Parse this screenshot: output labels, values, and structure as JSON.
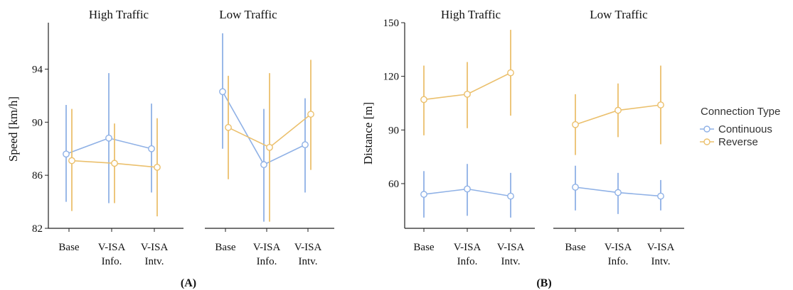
{
  "colors": {
    "continuous": "#8FB1E6",
    "reverse": "#EBC06D"
  },
  "panel_labels": [
    "(A)",
    "(B)"
  ],
  "legend": {
    "title": "Connection Type",
    "items": [
      "Continuous",
      "Reverse"
    ]
  },
  "chart_data": [
    {
      "type": "line",
      "panel": "(A)",
      "ylabel": "Speed [km/h]",
      "ylim": [
        82,
        97.5
      ],
      "yticks": [
        82,
        86,
        90,
        94
      ],
      "categories": [
        [
          "Base"
        ],
        [
          "V-ISA",
          "Info."
        ],
        [
          "V-ISA",
          "Intv."
        ]
      ],
      "facets": [
        {
          "title": "High Traffic",
          "series": [
            {
              "name": "Continuous",
              "mean": [
                87.6,
                88.8,
                88.0
              ],
              "lower": [
                84.0,
                83.9,
                84.7
              ],
              "upper": [
                91.3,
                93.7,
                91.4
              ]
            },
            {
              "name": "Reverse",
              "mean": [
                87.1,
                86.9,
                86.6
              ],
              "lower": [
                83.3,
                83.9,
                82.9
              ],
              "upper": [
                91.0,
                89.9,
                90.3
              ]
            }
          ]
        },
        {
          "title": "Low Traffic",
          "series": [
            {
              "name": "Continuous",
              "mean": [
                92.3,
                86.8,
                88.3
              ],
              "lower": [
                88.0,
                82.5,
                84.7
              ],
              "upper": [
                96.7,
                91.0,
                91.8
              ]
            },
            {
              "name": "Reverse",
              "mean": [
                89.6,
                88.1,
                90.6
              ],
              "lower": [
                85.7,
                82.5,
                86.4
              ],
              "upper": [
                93.5,
                93.7,
                94.7
              ]
            }
          ]
        }
      ]
    },
    {
      "type": "line",
      "panel": "(B)",
      "ylabel": "Distance [m]",
      "ylim": [
        35,
        150
      ],
      "yticks": [
        60,
        90,
        120,
        150
      ],
      "categories": [
        [
          "Base"
        ],
        [
          "V-ISA",
          "Info."
        ],
        [
          "V-ISA",
          "Intv."
        ]
      ],
      "facets": [
        {
          "title": "High Traffic",
          "series": [
            {
              "name": "Continuous",
              "mean": [
                54,
                57,
                53
              ],
              "lower": [
                41,
                42,
                41
              ],
              "upper": [
                67,
                71,
                66
              ]
            },
            {
              "name": "Reverse",
              "mean": [
                107,
                110,
                122
              ],
              "lower": [
                87,
                91,
                98
              ],
              "upper": [
                126,
                128,
                146
              ]
            }
          ]
        },
        {
          "title": "Low Traffic",
          "series": [
            {
              "name": "Continuous",
              "mean": [
                58,
                55,
                53
              ],
              "lower": [
                45,
                43,
                45
              ],
              "upper": [
                70,
                66,
                62
              ]
            },
            {
              "name": "Reverse",
              "mean": [
                93,
                101,
                104
              ],
              "lower": [
                76,
                86,
                82
              ],
              "upper": [
                110,
                116,
                126
              ]
            }
          ]
        }
      ]
    }
  ]
}
